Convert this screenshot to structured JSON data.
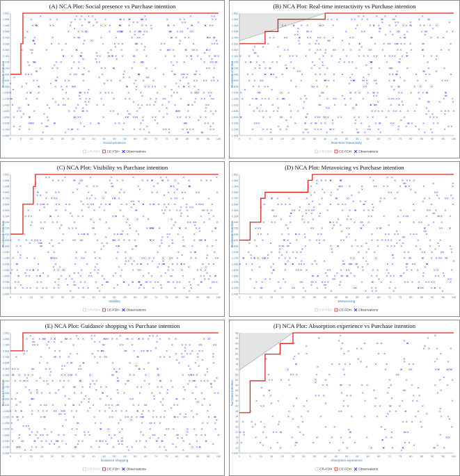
{
  "charts": [
    {
      "title": "(A) NCA Plot: Social presence vs Purchase intention",
      "xlabel": "Social presence",
      "ylabel": "Purchase intention",
      "legend": [
        "CR-FDH",
        "CE-FDH",
        "Observations"
      ]
    },
    {
      "title": "(B) NCA Plot: Real-time interactivity vs Purchase intention",
      "xlabel": "Real-time interactivity",
      "ylabel": "Purchase intention",
      "legend": [
        "CR-FDH",
        "CE-FDH",
        "Observations"
      ]
    },
    {
      "title": "(C) NCA Plot: Visibility vs Purchase intention",
      "xlabel": "Visibility",
      "ylabel": "Purchase intention",
      "legend": [
        "CR-FDH",
        "CE-FDH",
        "Observations"
      ]
    },
    {
      "title": "(D) NCA Plot: Metavoicing vs Purchase intention",
      "xlabel": "Metavoicing",
      "ylabel": "Purchase intention",
      "legend": [
        "CR-FDH",
        "CE-FDH",
        "Observations"
      ]
    },
    {
      "title": "(E) NCA Plot: Guidance shopping vs Purchase intention",
      "xlabel": "Guidance shopping",
      "ylabel": "Purchase intention",
      "legend": [
        "CR-FDH",
        "CE-FDH",
        "Observations"
      ]
    },
    {
      "title": "(F) NCA Plot: Absorption experience vs Purchase intention",
      "xlabel": "Absorption experience",
      "ylabel": "Purchase intention",
      "legend": [
        "CR-FDH",
        "CE-FDH",
        "Observations"
      ]
    }
  ],
  "colors": {
    "ce_fdh": "#e0221b",
    "cr_fdh": "#bbbbbb",
    "observations": "#2e2ed6",
    "ticks": "#3b78b8"
  },
  "chart_data": [
    {
      "type": "scatter",
      "x_ticks": [
        "0",
        "5",
        "10",
        "15",
        "20",
        "25",
        "30",
        "35",
        "40",
        "45",
        "50",
        "55",
        "60",
        "65",
        "70",
        "75",
        "80",
        "85",
        "90",
        "95",
        "100"
      ],
      "y_ticks": [
        "1.561",
        "1.364",
        "1.164",
        "0.966",
        "0.764",
        "0.564",
        "0.364",
        "0.164",
        "-0.036",
        "-0.236",
        "-0.436",
        "-0.636",
        "-0.836",
        "-1.036",
        "-1.236",
        "-1.436",
        "-1.636",
        "-1.836",
        "-2.036",
        "-2.236",
        "-2.436"
      ],
      "xlim": [
        0,
        100
      ],
      "ylim": [
        -2.436,
        1.561
      ],
      "ce_fdh": [
        [
          0,
          -0.436
        ],
        [
          5,
          -0.436
        ],
        [
          5,
          0.564
        ],
        [
          6,
          0.564
        ],
        [
          6,
          1.561
        ],
        [
          100,
          1.561
        ]
      ],
      "cr_fdh": [],
      "seed": 11,
      "n_points": 600
    },
    {
      "type": "scatter",
      "x_ticks": [
        "0",
        "5",
        "10",
        "15",
        "20",
        "25",
        "30",
        "35",
        "40",
        "45",
        "50",
        "55",
        "60",
        "65",
        "70",
        "75",
        "80",
        "85",
        "90",
        "95",
        "100"
      ],
      "y_ticks": [
        "1.561",
        "1.364",
        "1.164",
        "0.964",
        "0.764",
        "0.564",
        "0.364",
        "0.164",
        "-0.036",
        "-0.236",
        "-0.436",
        "-0.636",
        "-0.836",
        "-1.036",
        "-1.236",
        "-1.436",
        "-1.636",
        "-1.836",
        "-2.036",
        "-2.236",
        "-2.436"
      ],
      "xlim": [
        0,
        100
      ],
      "ylim": [
        -2.436,
        1.561
      ],
      "ce_fdh": [
        [
          0,
          0.564
        ],
        [
          12,
          0.564
        ],
        [
          12,
          0.964
        ],
        [
          18,
          0.964
        ],
        [
          18,
          1.364
        ],
        [
          40,
          1.364
        ],
        [
          40,
          1.561
        ],
        [
          100,
          1.561
        ]
      ],
      "cr_fdh": [
        [
          0,
          0.66
        ],
        [
          40,
          1.561
        ]
      ],
      "seed": 23,
      "n_points": 600
    },
    {
      "type": "scatter",
      "x_ticks": [
        "0",
        "5",
        "10",
        "15",
        "20",
        "25",
        "30",
        "35",
        "40",
        "45",
        "50",
        "55",
        "60",
        "65",
        "70",
        "75",
        "80",
        "85",
        "90",
        "95",
        "100"
      ],
      "y_ticks": [
        "1.561",
        "1.364",
        "1.164",
        "0.964",
        "0.764",
        "0.564",
        "0.364",
        "0.164",
        "-0.036",
        "-0.236",
        "-0.436",
        "-0.636",
        "-0.836",
        "-1.036",
        "-1.236",
        "-1.436",
        "-1.636",
        "-1.836",
        "-2.036",
        "-2.236",
        "-2.436"
      ],
      "xlim": [
        0,
        100
      ],
      "ylim": [
        -2.436,
        1.561
      ],
      "ce_fdh": [
        [
          0,
          -0.436
        ],
        [
          6,
          -0.436
        ],
        [
          6,
          0.564
        ],
        [
          11,
          0.564
        ],
        [
          11,
          1.161
        ],
        [
          12,
          1.161
        ],
        [
          12,
          1.561
        ],
        [
          100,
          1.561
        ]
      ],
      "cr_fdh": [],
      "seed": 37,
      "n_points": 600
    },
    {
      "type": "scatter",
      "x_ticks": [
        "0",
        "5",
        "10",
        "15",
        "20",
        "25",
        "30",
        "35",
        "40",
        "45",
        "50",
        "55",
        "60",
        "65",
        "70",
        "75",
        "80",
        "85",
        "90",
        "95",
        "100"
      ],
      "y_ticks": [
        "1.561",
        "1.364",
        "1.164",
        "0.964",
        "0.764",
        "0.564",
        "0.364",
        "0.164",
        "-0.036",
        "-0.236",
        "-0.436",
        "-0.636",
        "-0.836",
        "-1.036",
        "-1.236",
        "-1.436",
        "-1.636",
        "-1.836",
        "-2.036",
        "-2.236",
        "-2.436"
      ],
      "xlim": [
        0,
        100
      ],
      "ylim": [
        -2.436,
        1.561
      ],
      "ce_fdh": [
        [
          0,
          -0.636
        ],
        [
          5,
          -0.636
        ],
        [
          5,
          -0.036
        ],
        [
          10,
          -0.036
        ],
        [
          10,
          0.764
        ],
        [
          12,
          0.764
        ],
        [
          12,
          0.964
        ],
        [
          32,
          0.964
        ],
        [
          32,
          1.364
        ],
        [
          34,
          1.364
        ],
        [
          34,
          1.561
        ],
        [
          100,
          1.561
        ]
      ],
      "cr_fdh": [],
      "seed": 51,
      "n_points": 600
    },
    {
      "type": "scatter",
      "x_ticks": [
        "0",
        "5",
        "10",
        "15",
        "20",
        "25",
        "30",
        "35",
        "40",
        "45",
        "50",
        "55",
        "60",
        "65",
        "70",
        "75",
        "80",
        "85",
        "90",
        "95",
        "100"
      ],
      "y_ticks": [
        "1.561",
        "1.364",
        "1.164",
        "0.964",
        "0.764",
        "0.564",
        "0.364",
        "0.164",
        "-0.036",
        "-0.236",
        "-0.436",
        "-0.636",
        "-0.836",
        "-1.036",
        "-1.236",
        "-1.436",
        "-1.636",
        "-1.836",
        "-2.036",
        "-2.236",
        "-2.436"
      ],
      "xlim": [
        0,
        100
      ],
      "ylim": [
        -2.436,
        1.561
      ],
      "ce_fdh": [
        [
          0,
          0.964
        ],
        [
          6,
          0.964
        ],
        [
          6,
          1.561
        ],
        [
          100,
          1.561
        ]
      ],
      "cr_fdh": [],
      "seed": 67,
      "n_points": 600
    },
    {
      "type": "scatter",
      "x_ticks": [
        "0",
        "5",
        "10",
        "15",
        "20",
        "25",
        "30",
        "35",
        "40",
        "45",
        "50",
        "55",
        "60",
        "65",
        "70",
        "75",
        "80",
        "85",
        "90",
        "95",
        "100"
      ],
      "y_ticks": [
        "98",
        "94",
        "90",
        "86",
        "82",
        "78",
        "74",
        "70",
        "66",
        "62",
        "58",
        "54",
        "50",
        "46",
        "42",
        "38",
        "34",
        "30",
        "26",
        "22",
        "18",
        "14",
        "10",
        "7.640"
      ],
      "xlim": [
        0,
        100
      ],
      "ylim": [
        7.64,
        98
      ],
      "ce_fdh": [
        [
          0,
          38
        ],
        [
          5,
          38
        ],
        [
          5,
          62
        ],
        [
          12,
          62
        ],
        [
          12,
          82
        ],
        [
          19,
          82
        ],
        [
          19,
          90
        ],
        [
          25,
          90
        ],
        [
          25,
          98
        ],
        [
          100,
          98
        ]
      ],
      "cr_fdh": [
        [
          0,
          70
        ],
        [
          25,
          98
        ]
      ],
      "seed": 83,
      "n_points": 300
    }
  ]
}
